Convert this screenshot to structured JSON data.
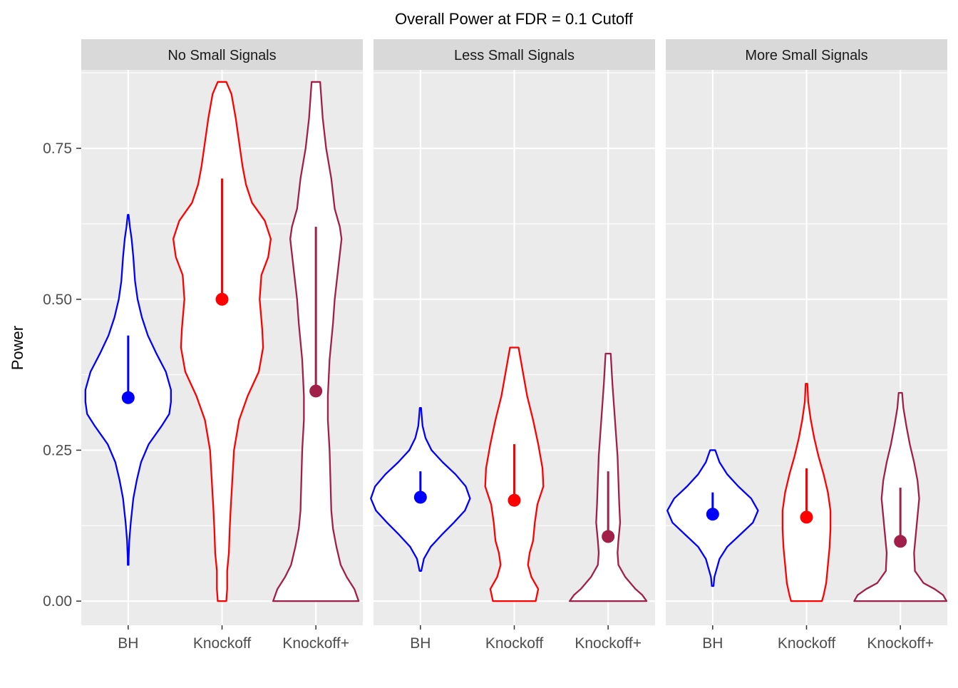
{
  "chart_data": {
    "type": "violin",
    "title": "Overall Power at FDR = 0.1 Cutoff",
    "xlabel": "",
    "ylabel": "Power",
    "ylim": [
      -0.04,
      0.88
    ],
    "y_ticks": [
      0.0,
      0.25,
      0.5,
      0.75
    ],
    "y_tick_labels": [
      "0.00",
      "0.25",
      "0.50",
      "0.75"
    ],
    "y_minor_ticks": [
      0.125,
      0.375,
      0.625,
      0.875
    ],
    "categories": [
      "BH",
      "Knockoff",
      "Knockoff+"
    ],
    "colors": {
      "BH": "#0000ff",
      "Knockoff": "#ff0000",
      "Knockoff+": "#a0204a"
    },
    "grid": true,
    "legend": "none",
    "panels": [
      {
        "label": "No Small Signals",
        "violins": [
          {
            "method": "BH",
            "profile": [
              [
                0.06,
                0.005
              ],
              [
                0.07,
                0.005
              ],
              [
                0.1,
                0.013
              ],
              [
                0.13,
                0.03
              ],
              [
                0.17,
                0.06
              ],
              [
                0.2,
                0.1
              ],
              [
                0.23,
                0.15
              ],
              [
                0.26,
                0.24
              ],
              [
                0.29,
                0.39
              ],
              [
                0.31,
                0.48
              ],
              [
                0.33,
                0.5
              ],
              [
                0.35,
                0.5
              ],
              [
                0.38,
                0.44
              ],
              [
                0.41,
                0.33
              ],
              [
                0.44,
                0.23
              ],
              [
                0.47,
                0.16
              ],
              [
                0.5,
                0.11
              ],
              [
                0.53,
                0.08
              ],
              [
                0.57,
                0.06
              ],
              [
                0.6,
                0.04
              ],
              [
                0.62,
                0.02
              ],
              [
                0.64,
                0.005
              ]
            ],
            "median": 0.337,
            "lower": 0.337,
            "upper": 0.44
          },
          {
            "method": "Knockoff",
            "profile": [
              [
                0.0,
                0.05
              ],
              [
                0.02,
                0.06
              ],
              [
                0.05,
                0.06
              ],
              [
                0.08,
                0.08
              ],
              [
                0.12,
                0.09
              ],
              [
                0.15,
                0.1
              ],
              [
                0.2,
                0.12
              ],
              [
                0.25,
                0.14
              ],
              [
                0.3,
                0.2
              ],
              [
                0.34,
                0.3
              ],
              [
                0.38,
                0.43
              ],
              [
                0.42,
                0.48
              ],
              [
                0.45,
                0.47
              ],
              [
                0.5,
                0.44
              ],
              [
                0.54,
                0.46
              ],
              [
                0.57,
                0.54
              ],
              [
                0.6,
                0.57
              ],
              [
                0.63,
                0.5
              ],
              [
                0.66,
                0.35
              ],
              [
                0.69,
                0.28
              ],
              [
                0.72,
                0.24
              ],
              [
                0.76,
                0.2
              ],
              [
                0.8,
                0.16
              ],
              [
                0.84,
                0.11
              ],
              [
                0.86,
                0.05
              ]
            ],
            "median": 0.5,
            "lower": 0.5,
            "upper": 0.7
          },
          {
            "method": "Knockoff+",
            "profile": [
              [
                0.0,
                0.5
              ],
              [
                0.02,
                0.45
              ],
              [
                0.04,
                0.36
              ],
              [
                0.06,
                0.29
              ],
              [
                0.09,
                0.24
              ],
              [
                0.12,
                0.2
              ],
              [
                0.15,
                0.18
              ],
              [
                0.2,
                0.17
              ],
              [
                0.25,
                0.16
              ],
              [
                0.3,
                0.14
              ],
              [
                0.34,
                0.14
              ],
              [
                0.4,
                0.16
              ],
              [
                0.46,
                0.2
              ],
              [
                0.5,
                0.22
              ],
              [
                0.55,
                0.26
              ],
              [
                0.6,
                0.3
              ],
              [
                0.62,
                0.28
              ],
              [
                0.65,
                0.22
              ],
              [
                0.7,
                0.18
              ],
              [
                0.75,
                0.12
              ],
              [
                0.8,
                0.08
              ],
              [
                0.84,
                0.06
              ],
              [
                0.86,
                0.05
              ]
            ],
            "median": 0.348,
            "lower": 0.348,
            "upper": 0.62
          }
        ]
      },
      {
        "label": "Less Small Signals",
        "violins": [
          {
            "method": "BH",
            "profile": [
              [
                0.05,
                0.01
              ],
              [
                0.07,
                0.04
              ],
              [
                0.09,
                0.12
              ],
              [
                0.11,
                0.25
              ],
              [
                0.13,
                0.39
              ],
              [
                0.15,
                0.52
              ],
              [
                0.17,
                0.58
              ],
              [
                0.19,
                0.53
              ],
              [
                0.21,
                0.41
              ],
              [
                0.23,
                0.26
              ],
              [
                0.25,
                0.13
              ],
              [
                0.27,
                0.06
              ],
              [
                0.29,
                0.025
              ],
              [
                0.31,
                0.013
              ],
              [
                0.32,
                0.008
              ]
            ],
            "median": 0.172,
            "lower": 0.172,
            "upper": 0.215
          },
          {
            "method": "Knockoff",
            "profile": [
              [
                0.0,
                0.25
              ],
              [
                0.02,
                0.28
              ],
              [
                0.04,
                0.2
              ],
              [
                0.06,
                0.16
              ],
              [
                0.08,
                0.18
              ],
              [
                0.1,
                0.22
              ],
              [
                0.13,
                0.24
              ],
              [
                0.16,
                0.27
              ],
              [
                0.19,
                0.34
              ],
              [
                0.22,
                0.33
              ],
              [
                0.26,
                0.28
              ],
              [
                0.3,
                0.22
              ],
              [
                0.34,
                0.15
              ],
              [
                0.38,
                0.1
              ],
              [
                0.42,
                0.05
              ]
            ],
            "median": 0.167,
            "lower": 0.167,
            "upper": 0.26
          },
          {
            "method": "Knockoff+",
            "profile": [
              [
                0.0,
                0.45
              ],
              [
                0.01,
                0.4
              ],
              [
                0.02,
                0.32
              ],
              [
                0.04,
                0.2
              ],
              [
                0.06,
                0.12
              ],
              [
                0.08,
                0.11
              ],
              [
                0.1,
                0.12
              ],
              [
                0.13,
                0.14
              ],
              [
                0.16,
                0.13
              ],
              [
                0.2,
                0.12
              ],
              [
                0.24,
                0.11
              ],
              [
                0.28,
                0.09
              ],
              [
                0.32,
                0.07
              ],
              [
                0.36,
                0.05
              ],
              [
                0.41,
                0.03
              ]
            ],
            "median": 0.107,
            "lower": 0.107,
            "upper": 0.215
          }
        ]
      },
      {
        "label": "More Small Signals",
        "violins": [
          {
            "method": "BH",
            "profile": [
              [
                0.025,
                0.01
              ],
              [
                0.04,
                0.02
              ],
              [
                0.07,
                0.08
              ],
              [
                0.09,
                0.17
              ],
              [
                0.11,
                0.32
              ],
              [
                0.13,
                0.47
              ],
              [
                0.15,
                0.53
              ],
              [
                0.17,
                0.45
              ],
              [
                0.19,
                0.3
              ],
              [
                0.21,
                0.17
              ],
              [
                0.23,
                0.08
              ],
              [
                0.25,
                0.03
              ]
            ],
            "median": 0.144,
            "lower": 0.144,
            "upper": 0.18
          },
          {
            "method": "Knockoff",
            "profile": [
              [
                0.0,
                0.18
              ],
              [
                0.01,
                0.2
              ],
              [
                0.03,
                0.23
              ],
              [
                0.06,
                0.25
              ],
              [
                0.09,
                0.27
              ],
              [
                0.12,
                0.28
              ],
              [
                0.15,
                0.28
              ],
              [
                0.18,
                0.25
              ],
              [
                0.21,
                0.2
              ],
              [
                0.24,
                0.14
              ],
              [
                0.27,
                0.09
              ],
              [
                0.3,
                0.05
              ],
              [
                0.33,
                0.02
              ],
              [
                0.36,
                0.01
              ]
            ],
            "median": 0.139,
            "lower": 0.139,
            "upper": 0.22
          },
          {
            "method": "Knockoff+",
            "profile": [
              [
                0.0,
                0.54
              ],
              [
                0.01,
                0.5
              ],
              [
                0.02,
                0.4
              ],
              [
                0.03,
                0.27
              ],
              [
                0.05,
                0.17
              ],
              [
                0.08,
                0.16
              ],
              [
                0.11,
                0.18
              ],
              [
                0.14,
                0.2
              ],
              [
                0.17,
                0.22
              ],
              [
                0.2,
                0.2
              ],
              [
                0.23,
                0.16
              ],
              [
                0.26,
                0.11
              ],
              [
                0.29,
                0.07
              ],
              [
                0.32,
                0.035
              ],
              [
                0.345,
                0.02
              ]
            ],
            "median": 0.099,
            "lower": 0.099,
            "upper": 0.188
          }
        ]
      }
    ]
  }
}
